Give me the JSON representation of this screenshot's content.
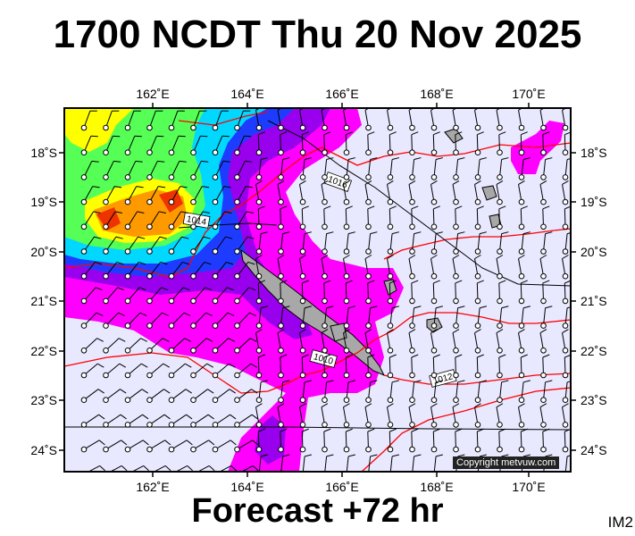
{
  "header": {
    "title": "1700 NCDT Thu 20 Nov 2025",
    "subtitle": "Forecast +72 hr",
    "product_tag": "IM2"
  },
  "map": {
    "lon_ticks": [
      "162˚E",
      "164˚E",
      "166˚E",
      "168˚E",
      "170˚E"
    ],
    "lat_ticks": [
      "18˚S",
      "19˚S",
      "20˚S",
      "21˚S",
      "22˚S",
      "23˚S",
      "24˚S"
    ],
    "isobar_labels": [
      "1016",
      "1014",
      "1010",
      "1012"
    ],
    "copyright": "Copyright metvuw.com",
    "colors": {
      "ocean": "#e8e8ff",
      "land": "#a8a8a8",
      "isobar_red": "#ff0000",
      "isobar_black": "#000000",
      "rain_magenta": "#ff00ff",
      "rain_purple": "#9900ee",
      "rain_blue": "#1e3cff",
      "rain_cyan": "#00d8ff",
      "rain_green": "#55ff55",
      "rain_yellow": "#ffff00",
      "rain_orange": "#ff9900",
      "rain_red": "#ee3300"
    }
  }
}
